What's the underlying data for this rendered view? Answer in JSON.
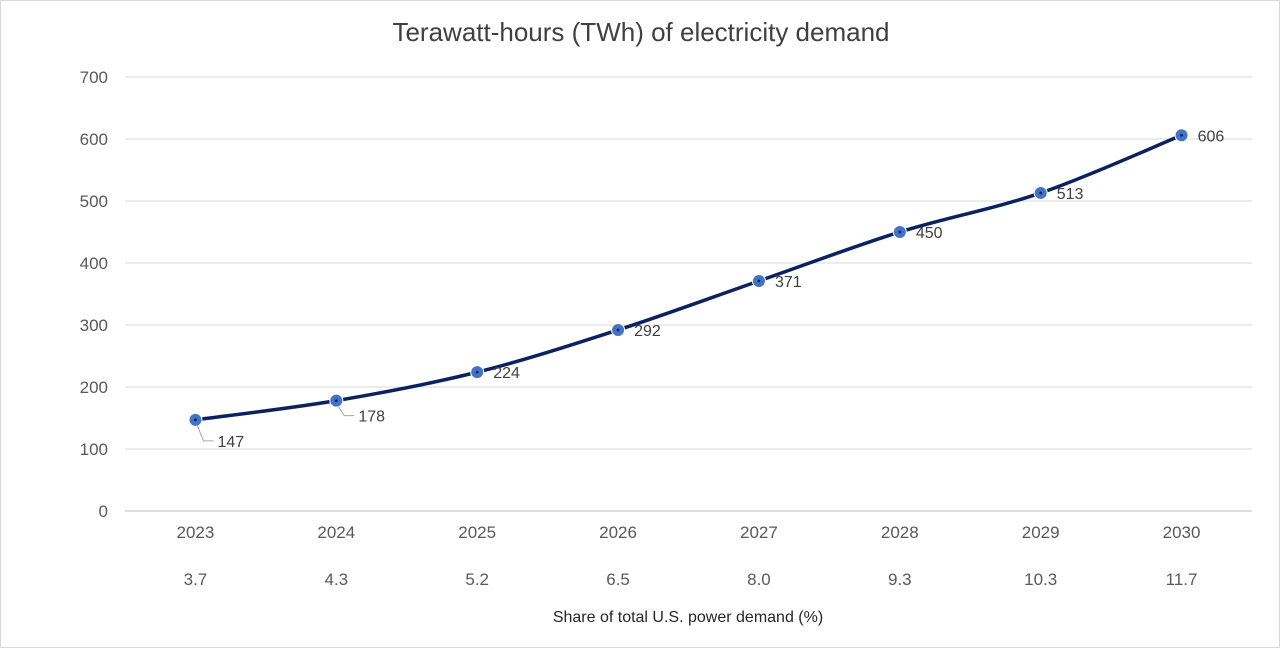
{
  "chart_data": {
    "type": "line",
    "title": "Terawatt-hours (TWh) of electricity demand",
    "categories": [
      "2023",
      "2024",
      "2025",
      "2026",
      "2027",
      "2028",
      "2029",
      "2030"
    ],
    "secondary_categories": [
      "3.7",
      "4.3",
      "5.2",
      "6.5",
      "8.0",
      "9.3",
      "10.3",
      "11.7"
    ],
    "xlabel": "Share of total U.S. power demand (%)",
    "ylabel": "",
    "ylim": [
      0,
      700
    ],
    "yticks": [
      0,
      100,
      200,
      300,
      400,
      500,
      600,
      700
    ],
    "series": [
      {
        "values": [
          147,
          178,
          224,
          292,
          371,
          450,
          513,
          606
        ],
        "data_labels": [
          "147",
          "178",
          "224",
          "292",
          "371",
          "450",
          "513",
          "606"
        ]
      }
    ],
    "line_color": "#0b2160",
    "marker_color": "#4472c4",
    "grid": true,
    "legend": "none"
  }
}
